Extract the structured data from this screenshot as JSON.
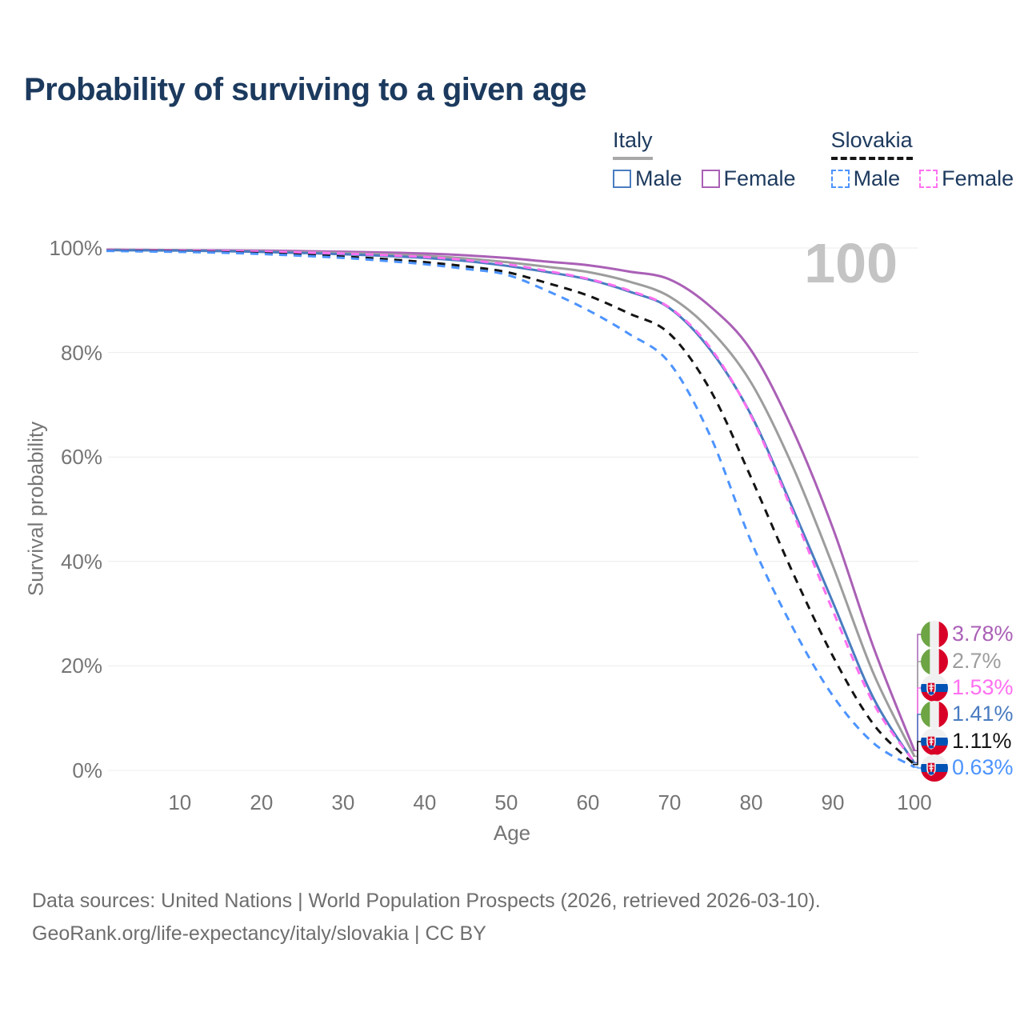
{
  "title": "Probability of surviving to a given age",
  "watermark_age": "100",
  "legend": {
    "groups": [
      {
        "name": "Italy",
        "line_style": "solid",
        "underline_color": "#a8a8a8",
        "items": [
          {
            "label": "Male",
            "color": "#4a7cc0"
          },
          {
            "label": "Female",
            "color": "#aa60b6"
          }
        ]
      },
      {
        "name": "Slovakia",
        "line_style": "dashed",
        "underline_color": "#161616",
        "items": [
          {
            "label": "Male",
            "color": "#4d94ff"
          },
          {
            "label": "Female",
            "color": "#ff70f0"
          }
        ]
      }
    ]
  },
  "chart_data": {
    "type": "line",
    "title": "Probability of surviving to a given age",
    "xlabel": "Age",
    "ylabel": "Survival probability",
    "xlim": [
      1,
      100
    ],
    "ylim": [
      0,
      100
    ],
    "grid": "horizontal",
    "x_ticks": [
      10,
      20,
      30,
      40,
      50,
      60,
      70,
      80,
      90,
      100
    ],
    "y_ticks": [
      {
        "value": 0,
        "label": "0%"
      },
      {
        "value": 20,
        "label": "20%"
      },
      {
        "value": 40,
        "label": "40%"
      },
      {
        "value": 60,
        "label": "60%"
      },
      {
        "value": 80,
        "label": "80%"
      },
      {
        "value": 100,
        "label": "100%"
      }
    ],
    "ages": [
      1,
      5,
      10,
      15,
      20,
      25,
      30,
      35,
      40,
      45,
      50,
      55,
      60,
      65,
      70,
      75,
      80,
      85,
      90,
      95,
      100
    ],
    "series": [
      {
        "id": "italy-female",
        "name": "Italy Female",
        "country": "Italy",
        "flag": "it",
        "color": "#aa60b6",
        "dashed": false,
        "end_label": "3.78%",
        "label_row": 0,
        "values": [
          99.7,
          99.65,
          99.6,
          99.55,
          99.5,
          99.4,
          99.3,
          99.15,
          98.95,
          98.6,
          98.1,
          97.4,
          96.7,
          95.5,
          94.0,
          88.8,
          80.4,
          65.5,
          46.4,
          23.5,
          3.78
        ]
      },
      {
        "id": "italy-both",
        "name": "Italy",
        "country": "Italy",
        "flag": "it",
        "color": "#9d9d9d",
        "dashed": false,
        "end_label": "2.7%",
        "label_row": 1,
        "values": [
          99.65,
          99.6,
          99.55,
          99.45,
          99.35,
          99.2,
          99.05,
          98.8,
          98.5,
          98.0,
          97.3,
          96.4,
          95.4,
          93.6,
          90.7,
          84.3,
          74.2,
          58.5,
          39.2,
          18.5,
          2.7
        ]
      },
      {
        "id": "slovakia-female",
        "name": "Slovakia Female",
        "country": "Slovakia",
        "flag": "sk",
        "color": "#ff70f0",
        "dashed": true,
        "end_label": "1.53%",
        "label_row": 2,
        "values": [
          99.6,
          99.55,
          99.5,
          99.4,
          99.3,
          99.15,
          98.95,
          98.65,
          98.3,
          97.7,
          96.9,
          95.6,
          94.1,
          91.9,
          88.6,
          80.9,
          67.8,
          49.8,
          30.6,
          12.8,
          1.53
        ]
      },
      {
        "id": "italy-male",
        "name": "Italy Male",
        "country": "Italy",
        "flag": "it",
        "color": "#4a7cc0",
        "dashed": false,
        "end_label": "1.41%",
        "label_row": 3,
        "values": [
          99.6,
          99.55,
          99.5,
          99.4,
          99.25,
          99.05,
          98.8,
          98.5,
          98.1,
          97.5,
          96.6,
          95.4,
          94.0,
          91.7,
          88.5,
          80.5,
          68.0,
          50.5,
          32.2,
          13.8,
          1.41
        ]
      },
      {
        "id": "slovakia-both",
        "name": "Slovakia",
        "country": "Slovakia",
        "flag": "sk",
        "color": "#141414",
        "dashed": true,
        "end_label": "1.11%",
        "label_row": 4,
        "values": [
          99.5,
          99.45,
          99.35,
          99.2,
          99.0,
          98.7,
          98.35,
          97.9,
          97.3,
          96.5,
          95.4,
          93.3,
          90.9,
          87.5,
          83.6,
          72.8,
          56.0,
          38.2,
          21.9,
          8.8,
          1.11
        ]
      },
      {
        "id": "slovakia-male",
        "name": "Slovakia Male",
        "country": "Slovakia",
        "flag": "sk",
        "color": "#4d94ff",
        "dashed": true,
        "end_label": "0.63%",
        "label_row": 5,
        "values": [
          99.45,
          99.35,
          99.25,
          99.1,
          98.85,
          98.5,
          98.1,
          97.55,
          96.9,
          96.0,
          94.9,
          91.8,
          88.1,
          83.6,
          78.0,
          64.0,
          43.8,
          27.6,
          14.3,
          5.2,
          0.63
        ]
      }
    ]
  },
  "footer": {
    "line1": "Data sources: United Nations | World Population Prospects (2026, retrieved 2026-03-10).",
    "line2": "GeoRank.org/life-expectancy/italy/slovakia | CC BY"
  }
}
